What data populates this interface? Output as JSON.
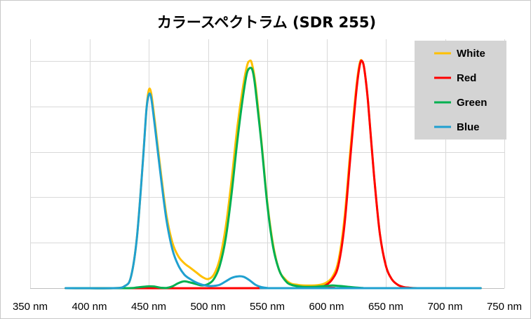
{
  "chart_data": {
    "type": "line",
    "title": "カラースペクトラム (SDR 255)",
    "xlabel": "",
    "ylabel": "",
    "x_unit": "nm",
    "xlim": [
      350,
      750
    ],
    "x_ticks": [
      350,
      400,
      450,
      500,
      550,
      600,
      650,
      700,
      750
    ],
    "x_tick_labels": [
      "350 nm",
      "400 nm",
      "450 nm",
      "500 nm",
      "550 nm",
      "600 nm",
      "650 nm",
      "700 nm",
      "750 nm"
    ],
    "ylim": [
      0,
      1.0
    ],
    "y_gridlines": 5,
    "grid": true,
    "legend_position": "top-right",
    "series": [
      {
        "name": "White",
        "color": "#FFC000",
        "points": [
          [
            380,
            0
          ],
          [
            420,
            0
          ],
          [
            430,
            0.01
          ],
          [
            435,
            0.05
          ],
          [
            440,
            0.22
          ],
          [
            445,
            0.55
          ],
          [
            448,
            0.78
          ],
          [
            450,
            0.87
          ],
          [
            452,
            0.86
          ],
          [
            455,
            0.74
          ],
          [
            460,
            0.52
          ],
          [
            465,
            0.32
          ],
          [
            470,
            0.2
          ],
          [
            475,
            0.14
          ],
          [
            480,
            0.11
          ],
          [
            485,
            0.09
          ],
          [
            490,
            0.07
          ],
          [
            495,
            0.05
          ],
          [
            500,
            0.04
          ],
          [
            505,
            0.06
          ],
          [
            510,
            0.13
          ],
          [
            515,
            0.27
          ],
          [
            520,
            0.48
          ],
          [
            525,
            0.72
          ],
          [
            530,
            0.9
          ],
          [
            533,
            0.98
          ],
          [
            535,
            1.0
          ],
          [
            537,
            0.99
          ],
          [
            540,
            0.9
          ],
          [
            545,
            0.65
          ],
          [
            550,
            0.38
          ],
          [
            555,
            0.19
          ],
          [
            560,
            0.08
          ],
          [
            565,
            0.04
          ],
          [
            570,
            0.02
          ],
          [
            575,
            0.015
          ],
          [
            580,
            0.012
          ],
          [
            590,
            0.012
          ],
          [
            595,
            0.015
          ],
          [
            600,
            0.025
          ],
          [
            605,
            0.05
          ],
          [
            610,
            0.12
          ],
          [
            615,
            0.3
          ],
          [
            620,
            0.6
          ],
          [
            625,
            0.88
          ],
          [
            628,
            0.99
          ],
          [
            630,
            1.0
          ],
          [
            632,
            0.96
          ],
          [
            635,
            0.82
          ],
          [
            640,
            0.5
          ],
          [
            645,
            0.24
          ],
          [
            650,
            0.1
          ],
          [
            655,
            0.04
          ],
          [
            660,
            0.015
          ],
          [
            665,
            0.005
          ],
          [
            670,
            0.002
          ],
          [
            680,
            0
          ],
          [
            730,
            0
          ]
        ]
      },
      {
        "name": "Red",
        "color": "#FF0000",
        "points": [
          [
            380,
            0
          ],
          [
            590,
            0
          ],
          [
            595,
            0.005
          ],
          [
            600,
            0.015
          ],
          [
            605,
            0.04
          ],
          [
            610,
            0.1
          ],
          [
            615,
            0.27
          ],
          [
            620,
            0.57
          ],
          [
            625,
            0.86
          ],
          [
            628,
            0.98
          ],
          [
            630,
            1.0
          ],
          [
            632,
            0.96
          ],
          [
            635,
            0.82
          ],
          [
            640,
            0.5
          ],
          [
            645,
            0.24
          ],
          [
            650,
            0.1
          ],
          [
            655,
            0.04
          ],
          [
            660,
            0.015
          ],
          [
            665,
            0.005
          ],
          [
            670,
            0.002
          ],
          [
            680,
            0
          ],
          [
            730,
            0
          ]
        ]
      },
      {
        "name": "Green",
        "color": "#00B050",
        "points": [
          [
            380,
            0
          ],
          [
            430,
            0
          ],
          [
            440,
            0.003
          ],
          [
            450,
            0.008
          ],
          [
            455,
            0.007
          ],
          [
            460,
            0.002
          ],
          [
            465,
            0.001
          ],
          [
            470,
            0.008
          ],
          [
            475,
            0.022
          ],
          [
            480,
            0.03
          ],
          [
            485,
            0.025
          ],
          [
            490,
            0.018
          ],
          [
            495,
            0.012
          ],
          [
            500,
            0.018
          ],
          [
            505,
            0.04
          ],
          [
            510,
            0.1
          ],
          [
            515,
            0.22
          ],
          [
            520,
            0.42
          ],
          [
            525,
            0.66
          ],
          [
            530,
            0.86
          ],
          [
            533,
            0.95
          ],
          [
            536,
            0.97
          ],
          [
            538,
            0.95
          ],
          [
            540,
            0.88
          ],
          [
            545,
            0.64
          ],
          [
            550,
            0.37
          ],
          [
            555,
            0.18
          ],
          [
            560,
            0.08
          ],
          [
            565,
            0.035
          ],
          [
            570,
            0.015
          ],
          [
            580,
            0.006
          ],
          [
            590,
            0.006
          ],
          [
            600,
            0.01
          ],
          [
            605,
            0.012
          ],
          [
            610,
            0.01
          ],
          [
            620,
            0.005
          ],
          [
            630,
            0.001
          ],
          [
            640,
            0
          ],
          [
            730,
            0
          ]
        ]
      },
      {
        "name": "Blue",
        "color": "#1FA0D0",
        "points": [
          [
            380,
            0
          ],
          [
            420,
            0
          ],
          [
            430,
            0.01
          ],
          [
            435,
            0.05
          ],
          [
            440,
            0.22
          ],
          [
            445,
            0.55
          ],
          [
            448,
            0.78
          ],
          [
            450,
            0.85
          ],
          [
            452,
            0.84
          ],
          [
            455,
            0.72
          ],
          [
            460,
            0.5
          ],
          [
            465,
            0.3
          ],
          [
            470,
            0.17
          ],
          [
            475,
            0.1
          ],
          [
            480,
            0.06
          ],
          [
            485,
            0.04
          ],
          [
            490,
            0.025
          ],
          [
            495,
            0.015
          ],
          [
            500,
            0.01
          ],
          [
            505,
            0.01
          ],
          [
            510,
            0.015
          ],
          [
            515,
            0.03
          ],
          [
            520,
            0.045
          ],
          [
            525,
            0.052
          ],
          [
            530,
            0.05
          ],
          [
            535,
            0.035
          ],
          [
            540,
            0.015
          ],
          [
            545,
            0.005
          ],
          [
            550,
            0.001
          ],
          [
            560,
            0
          ],
          [
            730,
            0
          ]
        ]
      }
    ]
  }
}
